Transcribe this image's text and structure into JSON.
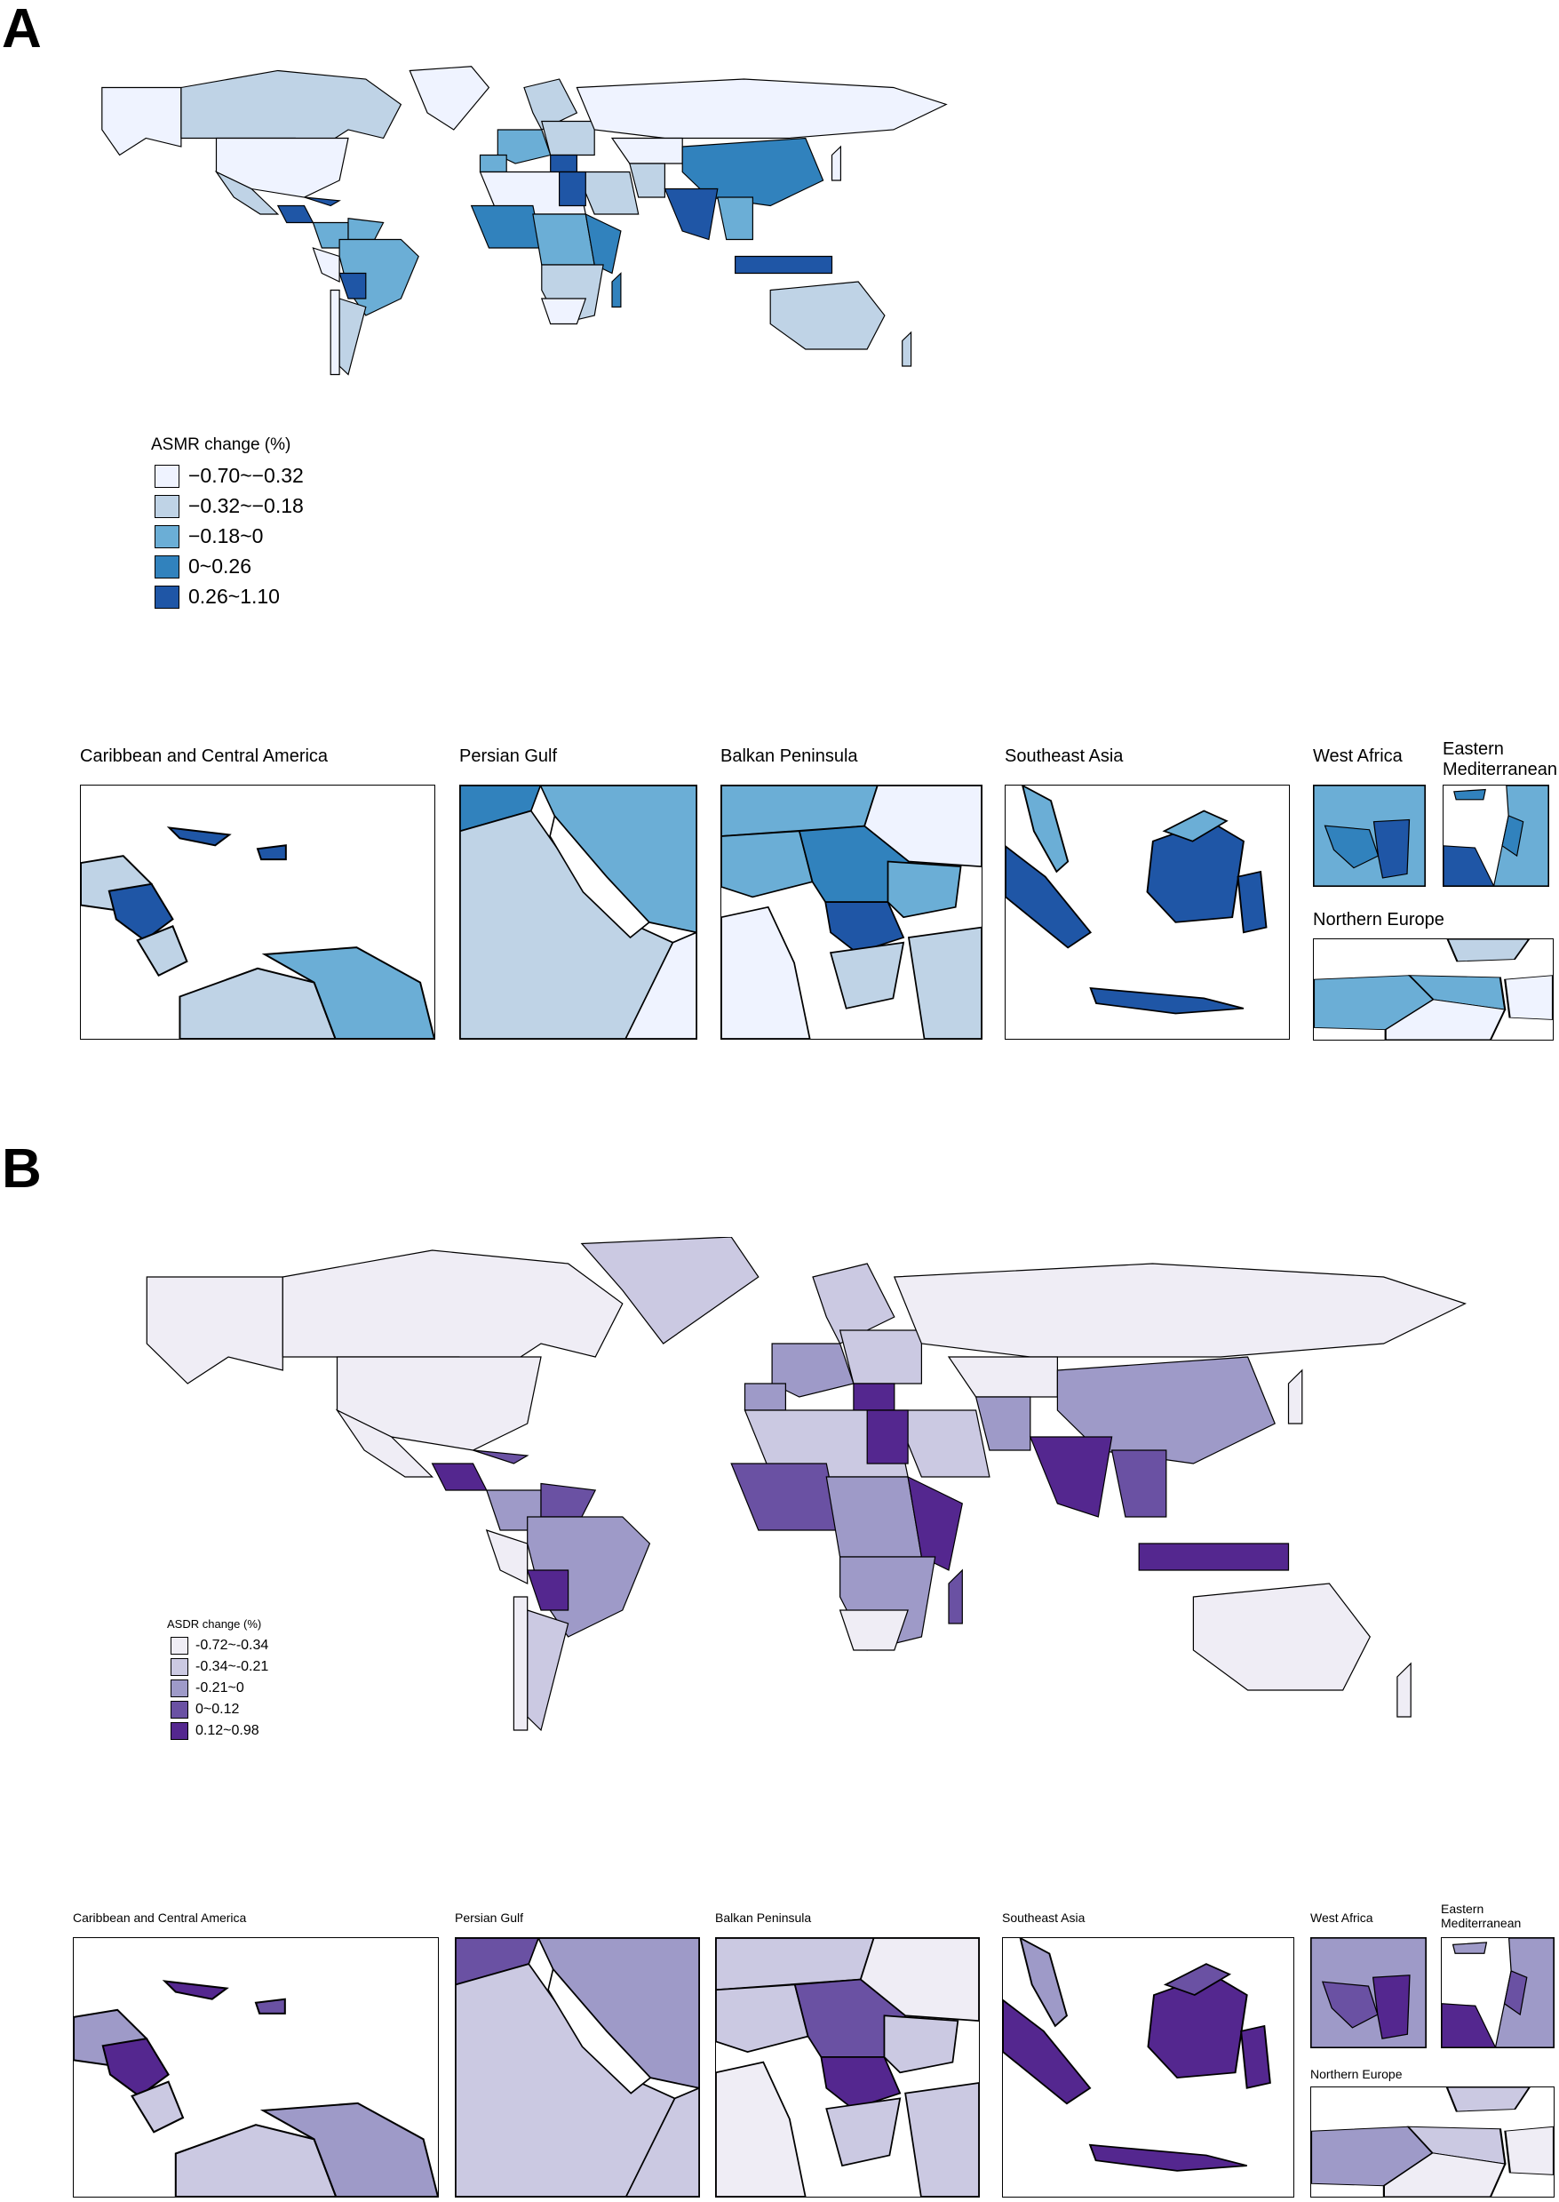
{
  "figure": {
    "panels": [
      {
        "letter": "A",
        "legend": {
          "title": "ASMR change (%)",
          "items": [
            {
              "label": "−0.70~−0.32",
              "color": "#eff3ff"
            },
            {
              "label": "−0.32~−0.18",
              "color": "#bfd3e6"
            },
            {
              "label": "−0.18~0",
              "color": "#6baed6"
            },
            {
              "label": "0~0.26",
              "color": "#3182bd"
            },
            {
              "label": "0.26~1.10",
              "color": "#1f56a6"
            }
          ]
        },
        "insets": [
          {
            "label": "Caribbean and Central America"
          },
          {
            "label": "Persian Gulf"
          },
          {
            "label": "Balkan Peninsula"
          },
          {
            "label": "Southeast Asia"
          },
          {
            "label": "West Africa"
          },
          {
            "label": "Eastern Mediterranean"
          },
          {
            "label": "Northern Europe"
          }
        ]
      },
      {
        "letter": "B",
        "legend": {
          "title": "ASDR change (%)",
          "items": [
            {
              "label": "-0.72~-0.34",
              "color": "#efedf5"
            },
            {
              "label": "-0.34~-0.21",
              "color": "#cbc9e2"
            },
            {
              "label": "-0.21~0",
              "color": "#9e9ac8"
            },
            {
              "label": "0~0.12",
              "color": "#6a51a3"
            },
            {
              "label": "0.12~0.98",
              "color": "#54278f"
            }
          ]
        },
        "insets": [
          {
            "label": "Caribbean and Central America"
          },
          {
            "label": "Persian Gulf"
          },
          {
            "label": "Balkan Peninsula"
          },
          {
            "label": "Southeast Asia"
          },
          {
            "label": "West Africa"
          },
          {
            "label": "Eastern Mediterranean"
          },
          {
            "label": "Northern Europe"
          }
        ]
      }
    ]
  }
}
